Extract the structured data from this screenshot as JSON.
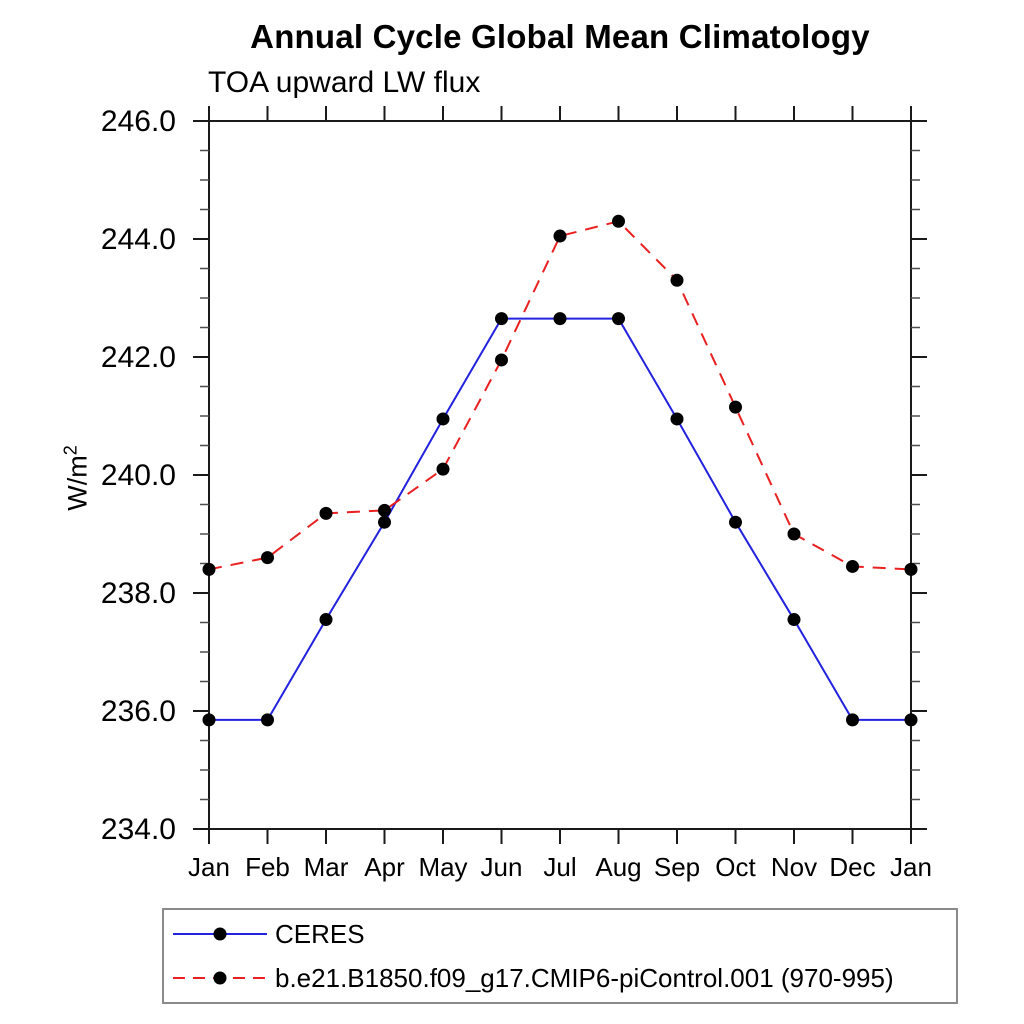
{
  "chart_data": {
    "type": "line",
    "title": "Annual Cycle Global Mean Climatology",
    "subtitle": "TOA upward LW flux",
    "ylabel_base": "W/m",
    "ylabel_sup": "2",
    "x_categories": [
      "Jan",
      "Feb",
      "Mar",
      "Apr",
      "May",
      "Jun",
      "Jul",
      "Aug",
      "Sep",
      "Oct",
      "Nov",
      "Dec",
      "Jan"
    ],
    "ylim": [
      234.0,
      246.0
    ],
    "ytick_step": 2.0,
    "yminor_step": 0.5,
    "ytick_labels": [
      "234.0",
      "236.0",
      "238.0",
      "240.0",
      "242.0",
      "244.0",
      "246.0"
    ],
    "grid": false,
    "legend_position": "bottom-left",
    "axis_color": "#1a1a1a",
    "minor_tick_color": "#4d4d4d",
    "marker_color": "#000000",
    "series": [
      {
        "name": "CERES",
        "color": "#2222e0",
        "line_style": "solid",
        "marker": "filled-circle",
        "values": [
          235.85,
          235.85,
          237.55,
          239.2,
          240.95,
          242.65,
          242.65,
          242.65,
          240.95,
          239.2,
          237.55,
          235.85,
          235.85
        ]
      },
      {
        "name": "b.e21.B1850.f09_g17.CMIP6-piControl.001 (970-995)",
        "color": "#ea2020",
        "line_style": "dashed",
        "marker": "filled-circle",
        "values": [
          238.4,
          238.6,
          239.35,
          239.4,
          240.1,
          241.95,
          244.05,
          244.3,
          243.3,
          241.15,
          239.0,
          238.45,
          238.4
        ]
      }
    ]
  }
}
